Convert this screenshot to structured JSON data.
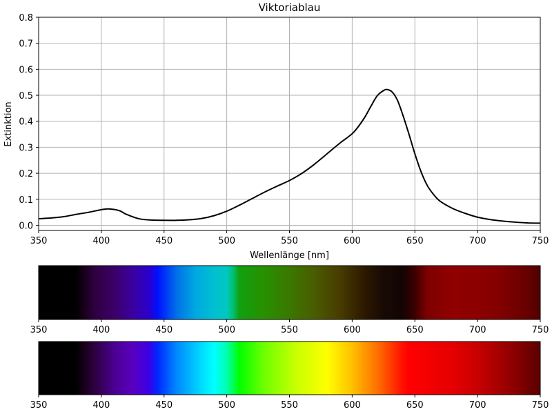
{
  "chart_data": {
    "type": "line",
    "title": "Viktoriablau",
    "xlabel": "Wellenlänge [nm]",
    "ylabel": "Extinktion",
    "xlim": [
      350,
      750
    ],
    "ylim": [
      -0.02,
      0.8
    ],
    "grid": true,
    "x_ticks": [
      "350",
      "400",
      "450",
      "500",
      "550",
      "600",
      "650",
      "700",
      "750"
    ],
    "y_ticks": [
      "0.0",
      "0.1",
      "0.2",
      "0.3",
      "0.4",
      "0.5",
      "0.6",
      "0.7",
      "0.8"
    ],
    "series": [
      {
        "color": "#000000",
        "x": [
          350,
          360,
          370,
          380,
          390,
          400,
          405,
          410,
          415,
          420,
          430,
          440,
          450,
          460,
          470,
          480,
          490,
          500,
          510,
          520,
          530,
          540,
          550,
          560,
          570,
          580,
          590,
          600,
          605,
          610,
          615,
          620,
          625,
          628,
          632,
          636,
          640,
          645,
          650,
          655,
          660,
          665,
          670,
          680,
          690,
          700,
          710,
          720,
          730,
          740,
          750
        ],
        "y": [
          0.025,
          0.028,
          0.033,
          0.042,
          0.05,
          0.06,
          0.063,
          0.061,
          0.055,
          0.042,
          0.025,
          0.02,
          0.019,
          0.019,
          0.021,
          0.026,
          0.037,
          0.054,
          0.077,
          0.102,
          0.127,
          0.15,
          0.172,
          0.2,
          0.235,
          0.275,
          0.315,
          0.352,
          0.38,
          0.415,
          0.458,
          0.498,
          0.518,
          0.522,
          0.512,
          0.482,
          0.43,
          0.355,
          0.275,
          0.205,
          0.152,
          0.118,
          0.093,
          0.065,
          0.046,
          0.031,
          0.022,
          0.016,
          0.012,
          0.009,
          0.008
        ]
      }
    ],
    "spectrum_bars": [
      {
        "name": "transmitted-color-bar",
        "x_ticks": [
          "350",
          "400",
          "450",
          "500",
          "550",
          "600",
          "650",
          "700",
          "750"
        ],
        "stops": [
          {
            "nm": 350,
            "color": "#000000"
          },
          {
            "nm": 380,
            "color": "#000000"
          },
          {
            "nm": 385,
            "color": "#150016"
          },
          {
            "nm": 395,
            "color": "#2e0040"
          },
          {
            "nm": 410,
            "color": "#3c0066"
          },
          {
            "nm": 425,
            "color": "#3a00a0"
          },
          {
            "nm": 438,
            "color": "#2a00cc"
          },
          {
            "nm": 445,
            "color": "#0010ff"
          },
          {
            "nm": 460,
            "color": "#0070e8"
          },
          {
            "nm": 475,
            "color": "#00a8e0"
          },
          {
            "nm": 490,
            "color": "#00c0d0"
          },
          {
            "nm": 500,
            "color": "#00c8c0"
          },
          {
            "nm": 505,
            "color": "#00c070"
          },
          {
            "nm": 510,
            "color": "#10a010"
          },
          {
            "nm": 530,
            "color": "#289000"
          },
          {
            "nm": 550,
            "color": "#3a7800"
          },
          {
            "nm": 570,
            "color": "#4a5c00"
          },
          {
            "nm": 590,
            "color": "#483c00"
          },
          {
            "nm": 610,
            "color": "#2c1800"
          },
          {
            "nm": 625,
            "color": "#170a04"
          },
          {
            "nm": 640,
            "color": "#140404"
          },
          {
            "nm": 650,
            "color": "#3c0000"
          },
          {
            "nm": 660,
            "color": "#7e0000"
          },
          {
            "nm": 680,
            "color": "#900000"
          },
          {
            "nm": 700,
            "color": "#8c0000"
          },
          {
            "nm": 720,
            "color": "#800000"
          },
          {
            "nm": 740,
            "color": "#650000"
          },
          {
            "nm": 750,
            "color": "#500000"
          }
        ]
      },
      {
        "name": "visible-spectrum-bar",
        "x_ticks": [
          "350",
          "400",
          "450",
          "500",
          "550",
          "600",
          "650",
          "700",
          "750"
        ],
        "stops": [
          {
            "nm": 350,
            "color": "#000000"
          },
          {
            "nm": 380,
            "color": "#000000"
          },
          {
            "nm": 385,
            "color": "#150016"
          },
          {
            "nm": 395,
            "color": "#2e0040"
          },
          {
            "nm": 410,
            "color": "#4a0090"
          },
          {
            "nm": 425,
            "color": "#5a00c0"
          },
          {
            "nm": 438,
            "color": "#3a00e6"
          },
          {
            "nm": 445,
            "color": "#0028ff"
          },
          {
            "nm": 460,
            "color": "#0088ff"
          },
          {
            "nm": 480,
            "color": "#00dcff"
          },
          {
            "nm": 490,
            "color": "#00ffff"
          },
          {
            "nm": 500,
            "color": "#00ffb0"
          },
          {
            "nm": 510,
            "color": "#00ff00"
          },
          {
            "nm": 530,
            "color": "#70ff00"
          },
          {
            "nm": 555,
            "color": "#c8ff00"
          },
          {
            "nm": 580,
            "color": "#ffff00"
          },
          {
            "nm": 600,
            "color": "#ffc000"
          },
          {
            "nm": 620,
            "color": "#ff7000"
          },
          {
            "nm": 640,
            "color": "#ff1000"
          },
          {
            "nm": 645,
            "color": "#ff0000"
          },
          {
            "nm": 680,
            "color": "#e40000"
          },
          {
            "nm": 700,
            "color": "#c80000"
          },
          {
            "nm": 730,
            "color": "#8a0000"
          },
          {
            "nm": 750,
            "color": "#5a0000"
          }
        ]
      }
    ]
  }
}
